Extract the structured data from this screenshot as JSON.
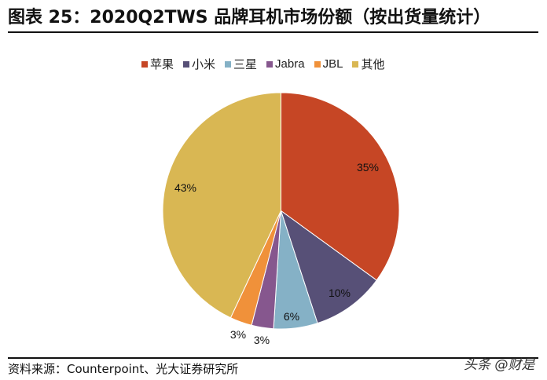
{
  "header": {
    "title": "图表 25：2020Q2TWS 品牌耳机市场份额（按出货量统计）"
  },
  "legend": [
    {
      "label": "苹果",
      "color": "#C64625"
    },
    {
      "label": "小米",
      "color": "#575077"
    },
    {
      "label": "三星",
      "color": "#85B1C6"
    },
    {
      "label": "Jabra",
      "color": "#86578E"
    },
    {
      "label": "JBL",
      "color": "#F0913A"
    },
    {
      "label": "其他",
      "color": "#D9B753"
    }
  ],
  "footer": {
    "source": "资料来源：Counterpoint、光大证券研究所",
    "watermark": "头条 @财是"
  },
  "chart_data": {
    "type": "pie",
    "title": "2020Q2TWS 品牌耳机市场份额（按出货量统计）",
    "categories": [
      "苹果",
      "小米",
      "三星",
      "Jabra",
      "JBL",
      "其他"
    ],
    "values": [
      35,
      10,
      6,
      3,
      3,
      43
    ],
    "labels": [
      "35%",
      "10%",
      "6%",
      "3%",
      "3%",
      "43%"
    ],
    "colors": [
      "#C64625",
      "#575077",
      "#85B1C6",
      "#86578E",
      "#F0913A",
      "#D9B753"
    ],
    "start_angle": "12 o'clock, clockwise",
    "legend_position": "top"
  }
}
